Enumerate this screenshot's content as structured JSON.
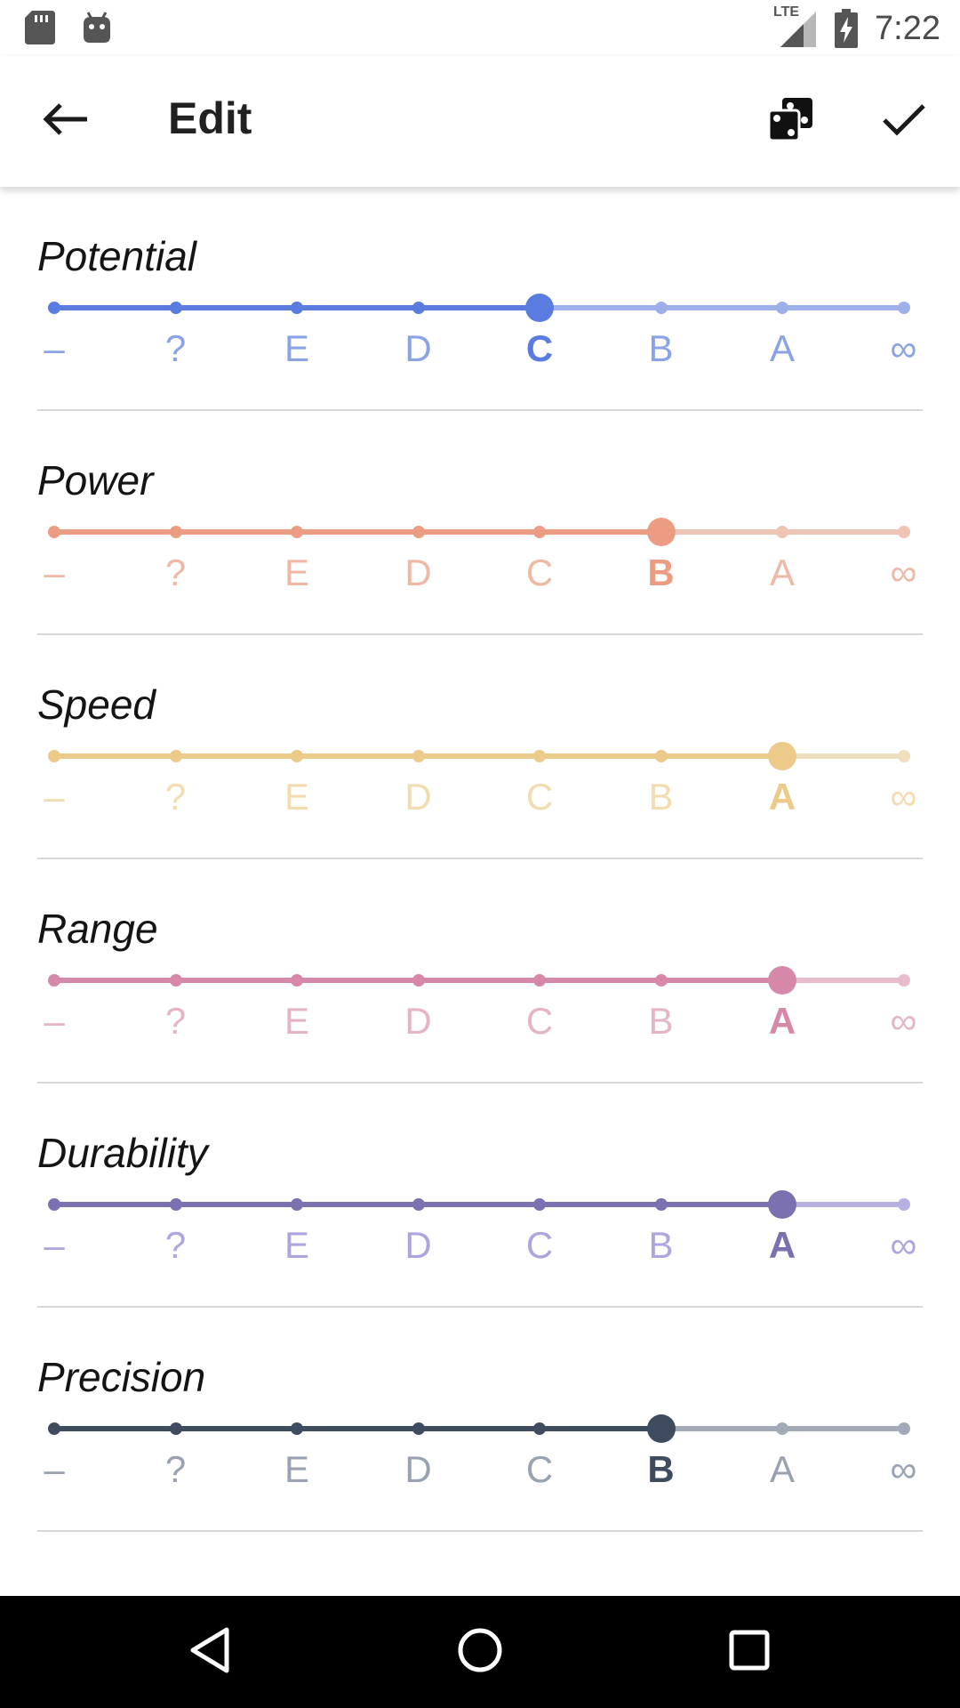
{
  "status_bar": {
    "time": "7:22",
    "network_label": "LTE",
    "icons": [
      "sd-card-icon",
      "android-debug-icon",
      "cell-signal-icon",
      "battery-charging-icon"
    ]
  },
  "toolbar": {
    "title": "Edit",
    "back_icon": "arrow-back-icon",
    "random_icon": "dice-icon",
    "confirm_icon": "check-icon"
  },
  "grades": [
    "–",
    "?",
    "E",
    "D",
    "C",
    "B",
    "A",
    "∞"
  ],
  "stats": [
    {
      "id": "potential",
      "label": "Potential",
      "value": "C",
      "color": "#5a7be0",
      "light": "#9db0ea",
      "text_color": "#8aa3e6"
    },
    {
      "id": "power",
      "label": "Power",
      "value": "B",
      "color": "#eb9c83",
      "light": "#f0c4b4",
      "text_color": "#efb8a4"
    },
    {
      "id": "speed",
      "label": "Speed",
      "value": "A",
      "color": "#ebca8a",
      "light": "#f0dfbf",
      "text_color": "#f2dcb0"
    },
    {
      "id": "range",
      "label": "Range",
      "value": "A",
      "color": "#d688a8",
      "light": "#e9bccd",
      "text_color": "#e6b4c8"
    },
    {
      "id": "durability",
      "label": "Durability",
      "value": "A",
      "color": "#7b71b0",
      "light": "#b6b0e0",
      "text_color": "#aca5e0"
    },
    {
      "id": "precision",
      "label": "Precision",
      "value": "B",
      "color": "#3f4b5f",
      "light": "#a2aab7",
      "text_color": "#98a2b0"
    }
  ],
  "nav_bar": {
    "icons": [
      "nav-back-icon",
      "nav-home-icon",
      "nav-recents-icon"
    ]
  }
}
